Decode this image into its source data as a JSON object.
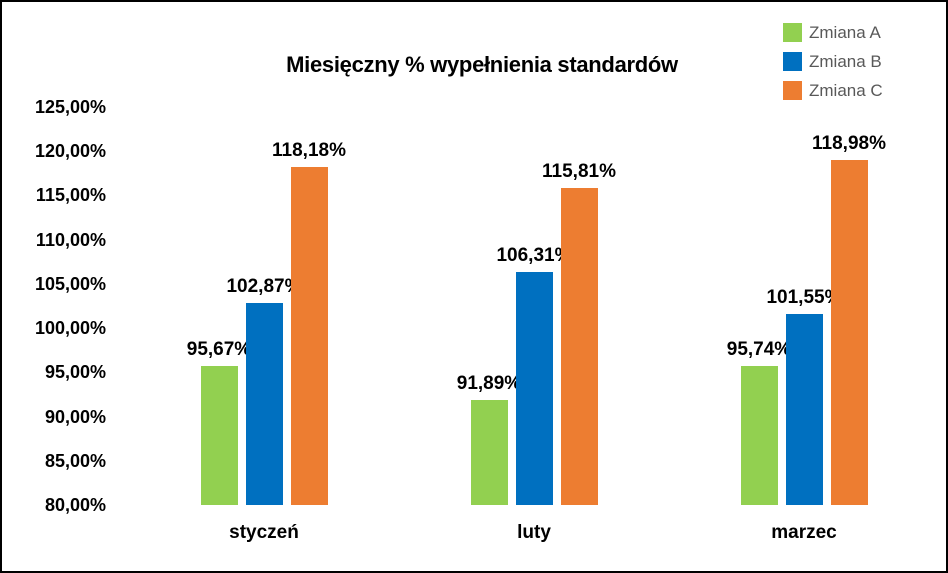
{
  "chart_data": {
    "type": "bar",
    "title": "Miesięczny % wypełnienia standardów",
    "categories": [
      "styczeń",
      "luty",
      "marzec"
    ],
    "series": [
      {
        "name": "Zmiana A",
        "color": "#92D050",
        "values": [
          95.67,
          91.89,
          95.74
        ],
        "labels": [
          "95,67%",
          "91,89%",
          "95,74%"
        ]
      },
      {
        "name": "Zmiana B",
        "color": "#0070C0",
        "values": [
          102.87,
          106.31,
          101.55
        ],
        "labels": [
          "102,87%",
          "106,31%",
          "101,55%"
        ]
      },
      {
        "name": "Zmiana C",
        "color": "#ED7D31",
        "values": [
          118.18,
          115.81,
          118.98
        ],
        "labels": [
          "118,18%",
          "115,81%",
          "118,98%"
        ]
      }
    ],
    "y_axis": {
      "min": 80,
      "max": 125,
      "step": 5,
      "tick_labels": [
        "125,00%",
        "120,00%",
        "115,00%",
        "110,00%",
        "105,00%",
        "100,00%",
        "95,00%",
        "90,00%",
        "85,00%",
        "80,00%"
      ]
    },
    "xlabel": "",
    "ylabel": "",
    "grid": false,
    "axis_lines": false,
    "data_labels": true,
    "legend_position": "top-right",
    "text_color": "#000000",
    "legend_text_color": "#595959",
    "background_color": "#ffffff",
    "border_color": "#000000"
  }
}
